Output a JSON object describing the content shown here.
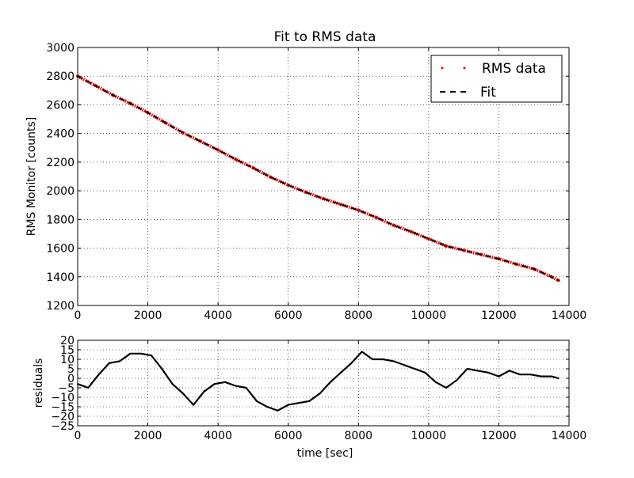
{
  "chart_data": [
    {
      "type": "line",
      "title": "Fit to RMS data",
      "xlabel": "",
      "ylabel": "RMS Monitor [counts]",
      "xlim": [
        0,
        14000
      ],
      "ylim": [
        1200,
        3000
      ],
      "xticks": [
        0,
        2000,
        4000,
        6000,
        8000,
        10000,
        12000,
        14000
      ],
      "yticks": [
        1200,
        1400,
        1600,
        1800,
        2000,
        2200,
        2400,
        2600,
        2800,
        3000
      ],
      "grid": true,
      "legend_position": "top-right",
      "series": [
        {
          "name": "RMS data",
          "style": "dots",
          "color": "#ff0000",
          "x": [
            0,
            500,
            1000,
            1500,
            2000,
            2500,
            3000,
            3500,
            4000,
            4500,
            5000,
            5500,
            6000,
            6500,
            7000,
            7500,
            8000,
            8500,
            9000,
            9500,
            10000,
            10500,
            11000,
            11500,
            12000,
            12500,
            13000,
            13500,
            13700
          ],
          "y": [
            2800,
            2735,
            2668,
            2610,
            2545,
            2475,
            2405,
            2345,
            2285,
            2220,
            2160,
            2095,
            2040,
            1990,
            1945,
            1905,
            1865,
            1815,
            1760,
            1715,
            1665,
            1615,
            1585,
            1555,
            1525,
            1488,
            1455,
            1400,
            1375
          ]
        },
        {
          "name": "Fit",
          "style": "dashed",
          "color": "#000000",
          "x": [
            0,
            500,
            1000,
            1500,
            2000,
            2500,
            3000,
            3500,
            4000,
            4500,
            5000,
            5500,
            6000,
            6500,
            7000,
            7500,
            8000,
            8500,
            9000,
            9500,
            10000,
            10500,
            11000,
            11500,
            12000,
            12500,
            13000,
            13500,
            13700
          ],
          "y": [
            2800,
            2735,
            2668,
            2610,
            2545,
            2475,
            2405,
            2345,
            2285,
            2220,
            2160,
            2095,
            2040,
            1990,
            1945,
            1905,
            1865,
            1815,
            1760,
            1715,
            1665,
            1615,
            1585,
            1555,
            1525,
            1488,
            1455,
            1400,
            1375
          ]
        }
      ]
    },
    {
      "type": "line",
      "title": "",
      "xlabel": "time [sec]",
      "ylabel": "residuals",
      "xlim": [
        0,
        14000
      ],
      "ylim": [
        -25,
        20
      ],
      "xticks": [
        0,
        2000,
        4000,
        6000,
        8000,
        10000,
        12000,
        14000
      ],
      "yticks": [
        -25,
        -20,
        -15,
        -10,
        -5,
        0,
        5,
        10,
        15,
        20
      ],
      "grid": true,
      "series": [
        {
          "name": "",
          "style": "line",
          "color": "#000000",
          "x": [
            0,
            300,
            600,
            900,
            1200,
            1500,
            1800,
            2100,
            2400,
            2700,
            3000,
            3300,
            3600,
            3900,
            4200,
            4500,
            4800,
            5100,
            5400,
            5700,
            6000,
            6300,
            6600,
            6900,
            7200,
            7500,
            7800,
            8100,
            8400,
            8700,
            9000,
            9300,
            9600,
            9900,
            10200,
            10500,
            10800,
            11100,
            11400,
            11700,
            12000,
            12300,
            12600,
            12900,
            13200,
            13500,
            13700
          ],
          "y": [
            -3,
            -5,
            2,
            8,
            9,
            13,
            13,
            12,
            5,
            -3,
            -8,
            -14,
            -7,
            -3,
            -2,
            -4,
            -5,
            -12,
            -15,
            -17,
            -14,
            -13,
            -12,
            -8,
            -2,
            3,
            8,
            14,
            10,
            10,
            9,
            7,
            5,
            3,
            -2,
            -5,
            -1,
            5,
            4,
            3,
            1,
            4,
            2,
            2,
            1,
            1,
            0
          ]
        }
      ]
    }
  ]
}
